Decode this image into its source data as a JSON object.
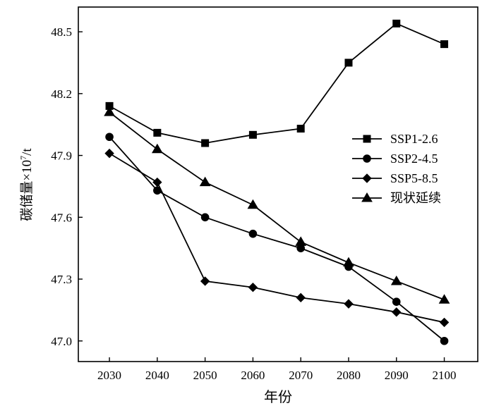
{
  "chart_data": {
    "type": "line",
    "title": "",
    "xlabel": "年份",
    "ylabel_main": "碳储量",
    "ylabel_times": "×",
    "ylabel_base": "10",
    "ylabel_exp": "7",
    "ylabel_unit": "/t",
    "x": [
      2030,
      2040,
      2050,
      2060,
      2070,
      2080,
      2090,
      2100
    ],
    "xlim": [
      2023.5,
      2107
    ],
    "ylim": [
      46.9,
      48.62
    ],
    "xticks": [
      2030,
      2040,
      2050,
      2060,
      2070,
      2080,
      2090,
      2100
    ],
    "yticks": [
      47.0,
      47.3,
      47.6,
      47.9,
      48.2,
      48.5
    ],
    "ytick_labels": [
      "47.0",
      "47.3",
      "47.6",
      "47.9",
      "48.2",
      "48.5"
    ],
    "grid": false,
    "legend_position": "right",
    "series": [
      {
        "name": "SSP1-2.6",
        "marker": "square",
        "values": [
          48.14,
          48.01,
          47.96,
          48.0,
          48.03,
          48.35,
          48.54,
          48.44
        ]
      },
      {
        "name": "SSP2-4.5",
        "marker": "circle",
        "values": [
          47.99,
          47.73,
          47.6,
          47.52,
          47.45,
          47.36,
          47.19,
          47.0
        ]
      },
      {
        "name": "SSP5-8.5",
        "marker": "diamond",
        "values": [
          47.91,
          47.77,
          47.29,
          47.26,
          47.21,
          47.18,
          47.14,
          47.09
        ]
      },
      {
        "name": "现状延续",
        "marker": "triangle",
        "values": [
          48.11,
          47.93,
          47.77,
          47.66,
          47.48,
          47.38,
          47.29,
          47.2
        ]
      }
    ]
  }
}
